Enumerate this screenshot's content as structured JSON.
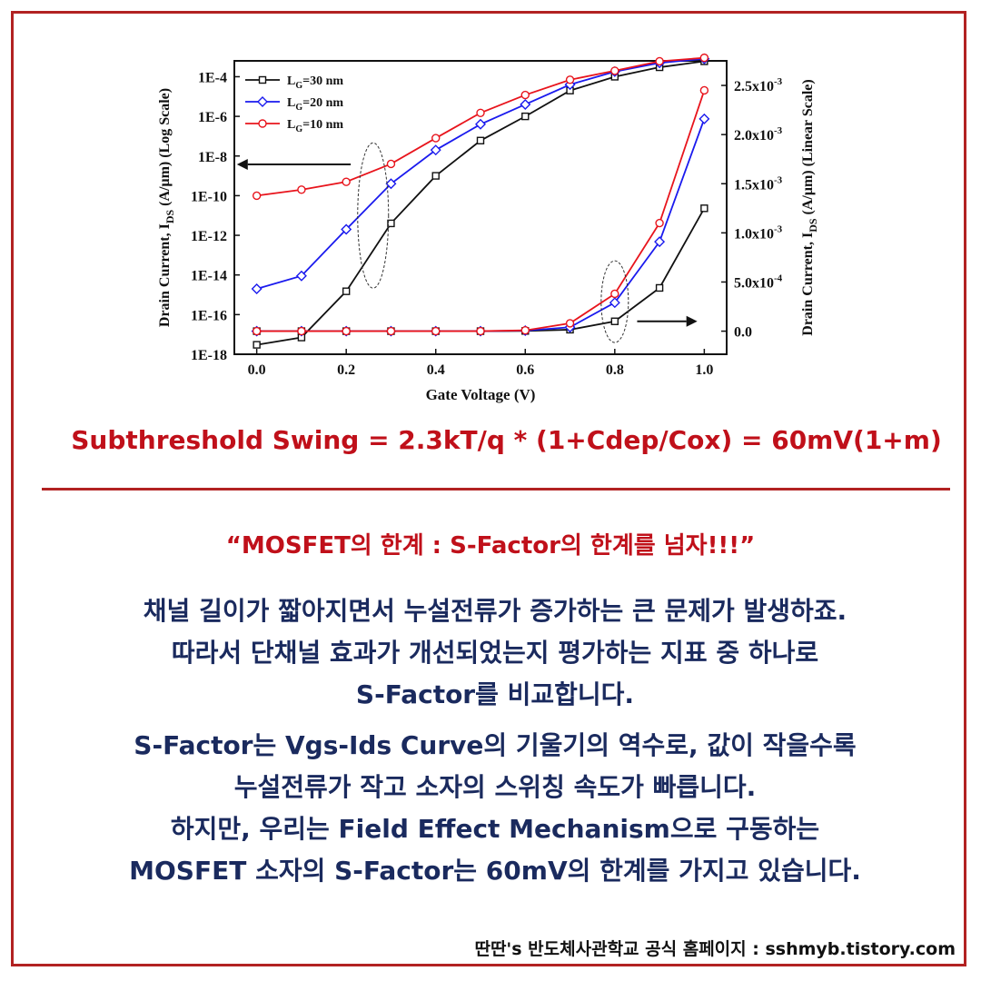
{
  "chart_data": {
    "type": "line",
    "xlabel": "Gate Voltage (V)",
    "ylabel_left": "Drain Current, I_DS (A/μm) (Log Scale)",
    "ylabel_right": "Drain Current, I_DS (A/μm) (Linear Scale)",
    "x": [
      0.0,
      0.1,
      0.2,
      0.3,
      0.4,
      0.5,
      0.6,
      0.7,
      0.8,
      0.9,
      1.0
    ],
    "xlim": [
      -0.05,
      1.05
    ],
    "x_ticks": [
      "0.0",
      "0.2",
      "0.4",
      "0.6",
      "0.8",
      "1.0"
    ],
    "x_tick_values": [
      0.0,
      0.2,
      0.4,
      0.6,
      0.8,
      1.0
    ],
    "ylim_left_log10": [
      -18,
      -3.2
    ],
    "y_ticks_left": [
      "1E-4",
      "1E-6",
      "1E-8",
      "1E-10",
      "1E-12",
      "1E-14",
      "1E-16",
      "1E-18"
    ],
    "y_tick_exp_left": [
      -4,
      -6,
      -8,
      -10,
      -12,
      -14,
      -16,
      -18
    ],
    "ylim_right": [
      -0.000235,
      0.00275
    ],
    "y_ticks_right": [
      "2.5x10",
      "2.0x10",
      "1.5x10",
      "1.0x10",
      "5.0x10",
      "0.0"
    ],
    "y_ticks_right_exp": [
      "-3",
      "-3",
      "-3",
      "-3",
      "-4",
      ""
    ],
    "y_tick_values_right": [
      0.0025,
      0.002,
      0.0015,
      0.001,
      0.0005,
      0.0
    ],
    "legend_position": "top-left",
    "series": [
      {
        "name": "L_G=30 nm",
        "legend_main": "L",
        "legend_sub": "G",
        "legend_rest": "=30 nm",
        "color": "#111111",
        "marker": "square",
        "log_values": [
          3e-18,
          7e-18,
          1.5e-15,
          4e-12,
          1e-09,
          6e-08,
          1e-06,
          2e-05,
          0.0001,
          0.0003,
          0.0006
        ],
        "linear_values": [
          0,
          0,
          0,
          0,
          0,
          0,
          2e-06,
          1.5e-05,
          0.0001,
          0.00044,
          0.00125
        ]
      },
      {
        "name": "L_G=20 nm",
        "legend_main": "L",
        "legend_sub": "G",
        "legend_rest": "=20 nm",
        "color": "#1a1aee",
        "marker": "diamond",
        "log_values": [
          2e-15,
          9e-15,
          2e-12,
          4e-10,
          2e-08,
          4e-07,
          4e-06,
          4e-05,
          0.00018,
          0.0005,
          0.0008
        ],
        "linear_values": [
          0,
          0,
          0,
          0,
          0,
          0,
          5e-06,
          4e-05,
          0.00029,
          0.00091,
          0.00216
        ]
      },
      {
        "name": "L_G=10 nm",
        "legend_main": "L",
        "legend_sub": "G",
        "legend_rest": "=10 nm",
        "color": "#e8141c",
        "marker": "circle",
        "log_values": [
          1e-10,
          2e-10,
          5e-10,
          4e-09,
          8e-08,
          1.5e-06,
          1.2e-05,
          7e-05,
          0.0002,
          0.0006,
          0.0009
        ],
        "linear_values": [
          0,
          0,
          0,
          0,
          0,
          0,
          8e-06,
          8e-05,
          0.00038,
          0.0011,
          0.00245
        ]
      }
    ]
  },
  "formula": "Subthreshold Swing = 2.3kT/q * (1+Cdep/Cox) = 60mV(1+m)",
  "quote": "“MOSFET의 한계 : S-Factor의 한계를 넘자!!!”",
  "paragraph1": [
    "채널 길이가 짧아지면서 누설전류가 증가하는 큰 문제가 발생하죠.",
    "따라서 단채널 효과가 개선되었는지 평가하는 지표 중 하나로",
    "S-Factor를 비교합니다."
  ],
  "paragraph2": [
    "S-Factor는 Vgs-Ids Curve의 기울기의 역수로, 값이 작을수록",
    "누설전류가 작고 소자의 스위칭 속도가 빠릅니다.",
    "하지만, 우리는 Field Effect Mechanism으로 구동하는",
    "MOSFET 소자의 S-Factor는 60mV의 한계를 가지고 있습니다."
  ],
  "footer": "딴딴's 반도체사관학교 공식 홈페이지 : sshmyb.tistory.com"
}
